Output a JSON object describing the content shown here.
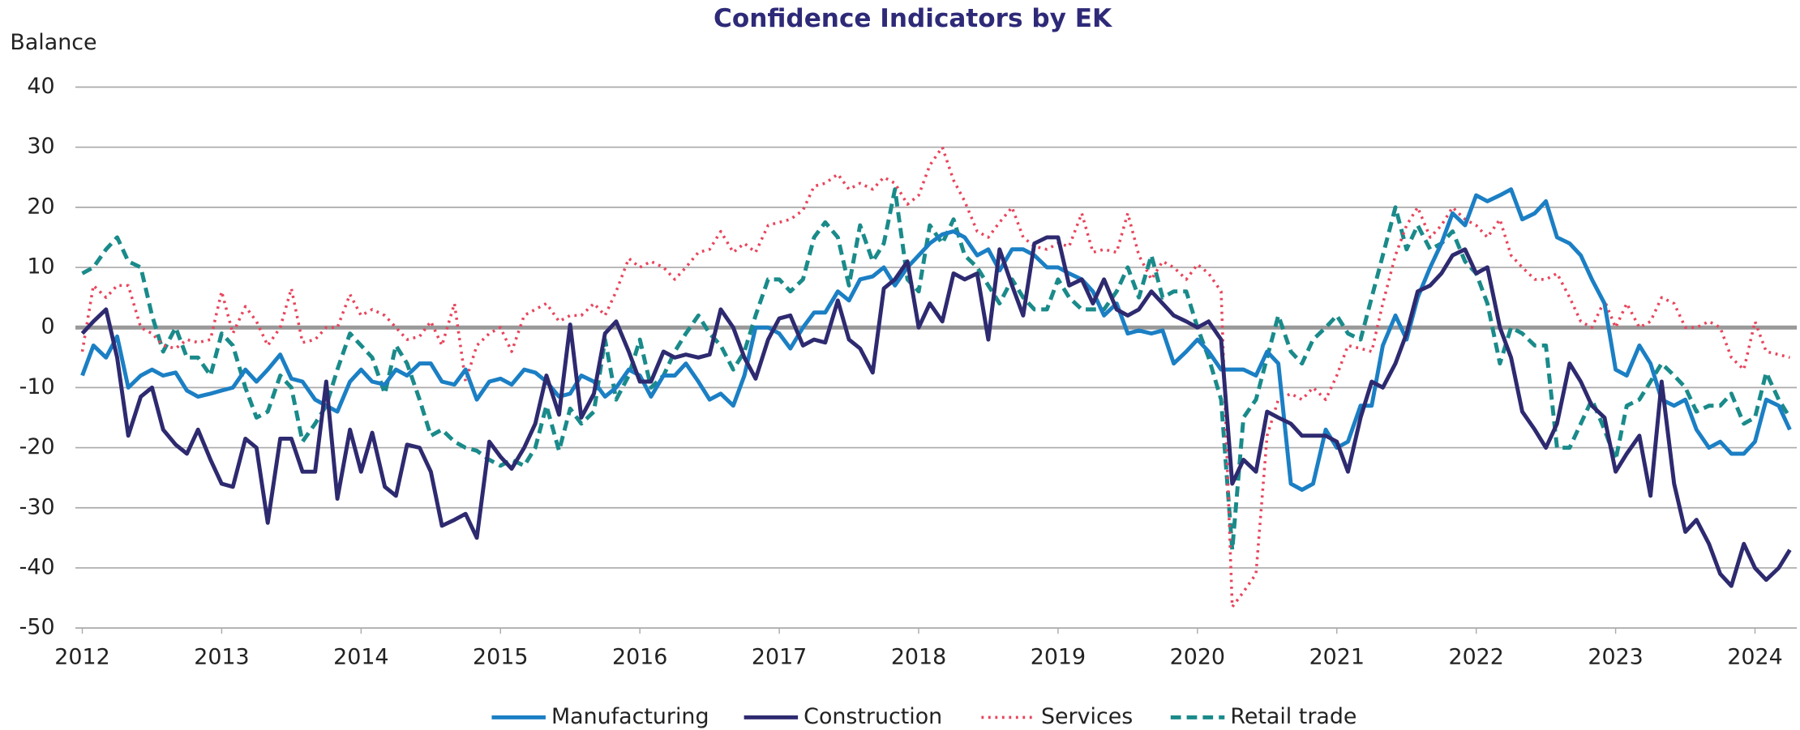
{
  "chart_data": {
    "type": "line",
    "title": "Confidence Indicators by EK",
    "y_label": "Balance",
    "xlim": [
      2012,
      2024.3
    ],
    "xticks": [
      2012,
      2013,
      2014,
      2015,
      2016,
      2017,
      2018,
      2019,
      2020,
      2021,
      2022,
      2023,
      2024
    ],
    "ylim": [
      -50,
      40
    ],
    "yticks": [
      40,
      30,
      20,
      10,
      0,
      -10,
      -20,
      -30,
      -40,
      -50
    ],
    "grid": true,
    "legend": "bottom",
    "x": [
      2012,
      2012.08,
      2012.17,
      2012.25,
      2012.33,
      2012.42,
      2012.5,
      2012.58,
      2012.67,
      2012.75,
      2012.83,
      2012.92,
      2013,
      2013.08,
      2013.17,
      2013.25,
      2013.33,
      2013.42,
      2013.5,
      2013.58,
      2013.67,
      2013.75,
      2013.83,
      2013.92,
      2014,
      2014.08,
      2014.17,
      2014.25,
      2014.33,
      2014.42,
      2014.5,
      2014.58,
      2014.67,
      2014.75,
      2014.83,
      2014.92,
      2015,
      2015.08,
      2015.17,
      2015.25,
      2015.33,
      2015.42,
      2015.5,
      2015.58,
      2015.67,
      2015.75,
      2015.83,
      2015.92,
      2016,
      2016.08,
      2016.17,
      2016.25,
      2016.33,
      2016.42,
      2016.5,
      2016.58,
      2016.67,
      2016.75,
      2016.83,
      2016.92,
      2017,
      2017.08,
      2017.17,
      2017.25,
      2017.33,
      2017.42,
      2017.5,
      2017.58,
      2017.67,
      2017.75,
      2017.83,
      2017.92,
      2018,
      2018.08,
      2018.17,
      2018.25,
      2018.33,
      2018.42,
      2018.5,
      2018.58,
      2018.67,
      2018.75,
      2018.83,
      2018.92,
      2019,
      2019.08,
      2019.17,
      2019.25,
      2019.33,
      2019.42,
      2019.5,
      2019.58,
      2019.67,
      2019.75,
      2019.83,
      2019.92,
      2020,
      2020.08,
      2020.17,
      2020.25,
      2020.33,
      2020.42,
      2020.5,
      2020.58,
      2020.67,
      2020.75,
      2020.83,
      2020.92,
      2021,
      2021.08,
      2021.17,
      2021.25,
      2021.33,
      2021.42,
      2021.5,
      2021.58,
      2021.67,
      2021.75,
      2021.83,
      2021.92,
      2022,
      2022.08,
      2022.17,
      2022.25,
      2022.33,
      2022.42,
      2022.5,
      2022.58,
      2022.67,
      2022.75,
      2022.83,
      2022.92,
      2023,
      2023.08,
      2023.17,
      2023.25,
      2023.33,
      2023.42,
      2023.5,
      2023.58,
      2023.67,
      2023.75,
      2023.83,
      2023.92,
      2024,
      2024.08,
      2024.17,
      2024.25
    ],
    "series": [
      {
        "name": "Manufacturing",
        "color": "#1b7fc4",
        "style": "solid",
        "values": [
          -8,
          -3,
          -5,
          -1.5,
          -10,
          -8,
          -7,
          -8,
          -7.5,
          -10.5,
          -11.5,
          -11,
          -10.5,
          -10,
          -7,
          -9,
          -7,
          -4.5,
          -8.5,
          -9,
          -12,
          -13,
          -14,
          -9,
          -7,
          -9,
          -9.5,
          -7,
          -8,
          -6,
          -6,
          -9,
          -9.5,
          -7,
          -12,
          -9,
          -8.5,
          -9.5,
          -7,
          -7.5,
          -9,
          -11.5,
          -11,
          -8,
          -9,
          -11.5,
          -10,
          -7,
          -8,
          -11.5,
          -8,
          -8,
          -6,
          -9,
          -12,
          -11,
          -13,
          -8,
          0,
          0,
          -1,
          -3.5,
          0,
          2.5,
          2.5,
          6,
          4.5,
          8,
          8.5,
          10,
          7,
          10,
          12,
          14,
          15.5,
          16,
          15,
          12,
          13,
          9.5,
          13,
          13,
          12,
          10,
          10,
          9,
          8,
          6,
          2,
          4,
          -1,
          -0.5,
          -1,
          -0.5,
          -6,
          -4,
          -2,
          -4,
          -7,
          -7,
          -7,
          -8,
          -4,
          -6,
          -26,
          -27,
          -26,
          -17,
          -20,
          -19,
          -13,
          -13,
          -3,
          2,
          -2,
          5,
          10,
          14,
          19,
          17,
          22,
          21,
          22,
          23,
          18,
          19,
          21,
          15,
          14,
          12,
          8,
          4,
          -7,
          -8,
          -3,
          -6,
          -12,
          -13,
          -12,
          -17,
          -20,
          -19,
          -21,
          -21,
          -19,
          -12,
          -13,
          -17
        ]
      },
      {
        "name": "Construction",
        "color": "#2e2a70",
        "style": "solid",
        "values": [
          -1,
          1,
          3,
          -5,
          -18,
          -11.5,
          -10,
          -17,
          -19.5,
          -21,
          -17,
          -22,
          -26,
          -26.5,
          -18.5,
          -20,
          -32.5,
          -18.5,
          -18.5,
          -24,
          -24,
          -9,
          -28.5,
          -17,
          -24,
          -17.5,
          -26.5,
          -28,
          -19.5,
          -20,
          -24,
          -33,
          -32,
          -31,
          -35,
          -19,
          -21.5,
          -23.5,
          -20,
          -16,
          -8,
          -14.5,
          0.5,
          -15,
          -11,
          -1,
          1,
          -4,
          -9,
          -9,
          -4,
          -5,
          -4.5,
          -5,
          -4.5,
          3,
          0,
          -5,
          -8.5,
          -2,
          1.5,
          2,
          -3,
          -2,
          -2.5,
          4.5,
          -2,
          -3.5,
          -7.5,
          6.5,
          8,
          11,
          0,
          4,
          1,
          9,
          8,
          9,
          -2,
          13,
          7,
          2,
          14,
          15,
          15,
          7,
          8,
          4,
          8,
          3,
          2,
          3,
          6,
          4,
          2,
          1,
          0,
          1,
          -2,
          -26,
          -22,
          -24,
          -14,
          -15,
          -16,
          -18,
          -18,
          -18,
          -19,
          -24,
          -15,
          -9,
          -10,
          -6,
          -1,
          6,
          7,
          9,
          12,
          13,
          9,
          10,
          0,
          -5,
          -14,
          -17,
          -20,
          -16,
          -6,
          -9,
          -13,
          -15,
          -24,
          -21,
          -18,
          -28,
          -9,
          -26,
          -34,
          -32,
          -36,
          -41,
          -43,
          -36,
          -40,
          -42,
          -40,
          -37
        ]
      },
      {
        "name": "Services",
        "color": "#e8455c",
        "style": "dotted",
        "values": [
          -4,
          7,
          5,
          7,
          7,
          0,
          -1,
          -3,
          -3.5,
          -2,
          -2.5,
          -2,
          6,
          -1,
          3.5,
          1,
          -3,
          0,
          6.5,
          -2.5,
          -2,
          0,
          0,
          5.5,
          2,
          3,
          2,
          0,
          -2,
          -1.5,
          1,
          -3,
          4,
          -9,
          -3,
          -1,
          0,
          -4,
          2,
          3,
          4,
          1,
          2,
          2,
          4,
          2,
          6,
          11.5,
          10,
          11,
          10,
          8,
          10,
          12.5,
          13,
          16,
          12.5,
          14,
          12.5,
          17,
          17.5,
          18,
          19.5,
          23.5,
          24,
          25.5,
          23,
          24,
          23,
          25,
          24,
          20.5,
          22,
          27,
          30,
          24.5,
          21,
          16,
          15,
          17.5,
          20,
          15,
          13.5,
          13,
          14,
          13.5,
          19,
          12.5,
          13,
          12.5,
          19,
          12,
          8,
          11,
          10,
          8,
          10.5,
          9,
          6,
          -46.5,
          -44,
          -41,
          -18,
          -12,
          -11,
          -12,
          -10,
          -12,
          -8,
          -3,
          -3.5,
          -4,
          4,
          12,
          17,
          20,
          15,
          17,
          20,
          18,
          17,
          15,
          18,
          12,
          10,
          8,
          8,
          9,
          5,
          1,
          0,
          4.5,
          0,
          4,
          0,
          1,
          5,
          4,
          0,
          0,
          1,
          0,
          -5,
          -7,
          1,
          -4,
          -4.5,
          -5
        ]
      },
      {
        "name": "Retail trade",
        "color": "#1a8a8a",
        "style": "dashed",
        "values": [
          9,
          10,
          13,
          15,
          11,
          10,
          2,
          -4,
          0,
          -5,
          -5,
          -8,
          -1,
          -3,
          -10,
          -15,
          -14,
          -8,
          -10,
          -19,
          -16,
          -13,
          -7,
          -1,
          -3,
          -5,
          -11,
          -3,
          -6,
          -12,
          -18,
          -17,
          -19,
          -20,
          -20.5,
          -22,
          -23,
          -22,
          -23,
          -20,
          -13,
          -20.5,
          -13.5,
          -16,
          -14,
          -2,
          -12,
          -8,
          -2,
          -10,
          -8,
          -4,
          -1,
          2,
          -1,
          -3,
          -7,
          -4,
          2,
          8,
          8,
          6,
          8,
          15,
          17.5,
          15,
          7,
          17,
          11,
          14,
          23,
          8,
          6,
          17,
          14,
          18,
          12,
          10,
          7,
          4,
          8,
          5,
          3,
          3,
          8,
          5,
          3,
          3,
          3,
          6,
          10,
          5,
          12,
          5,
          6,
          6,
          0,
          -5,
          -12,
          -37,
          -15,
          -12,
          -5,
          2,
          -4,
          -6,
          -2,
          0,
          2,
          -1,
          -2,
          5,
          12,
          20,
          13,
          17,
          13,
          14,
          16,
          11,
          9,
          4,
          -6,
          0,
          -1,
          -3,
          -3,
          -20,
          -20,
          -16,
          -12,
          -17,
          -22,
          -13,
          -12,
          -9,
          -6,
          -8,
          -10,
          -14,
          -13,
          -13,
          -11,
          -16,
          -15,
          -7.5,
          -12,
          -15
        ]
      }
    ]
  }
}
